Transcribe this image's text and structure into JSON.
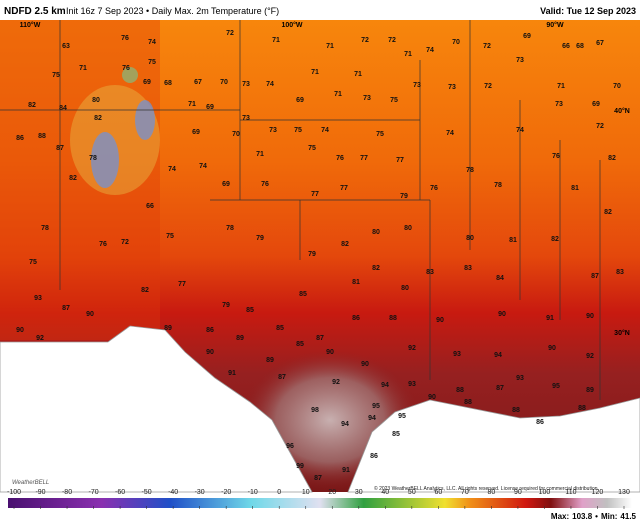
{
  "header": {
    "model": "NDFD 2.5 km",
    "description": "Init 16z 7 Sep 2023 • Daily Max. 2m Temperature (°F)",
    "valid": "Valid: Tue 12 Sep 2023"
  },
  "map": {
    "grid_labels": [
      "110°W",
      "100°W",
      "90°W",
      "40°N",
      "30°N"
    ],
    "temperatures": [
      63,
      76,
      74,
      72,
      71,
      71,
      72,
      72,
      71,
      74,
      70,
      72,
      69,
      66,
      68,
      67,
      70,
      75,
      71,
      76,
      75,
      69,
      68,
      67,
      70,
      73,
      74,
      71,
      71,
      73,
      72,
      73,
      71,
      82,
      84,
      80,
      82,
      71,
      69,
      73,
      69,
      71,
      73,
      75,
      73,
      73,
      69,
      88,
      86,
      87,
      78,
      69,
      70,
      73,
      75,
      74,
      75,
      74,
      74,
      72,
      82,
      74,
      74,
      71,
      75,
      76,
      77,
      77,
      78,
      76,
      82,
      66,
      69,
      76,
      77,
      77,
      79,
      76,
      78,
      81,
      82,
      75,
      78,
      76,
      72,
      75,
      78,
      79,
      79,
      82,
      80,
      80,
      80,
      81,
      82,
      93,
      87,
      90,
      82,
      77,
      79,
      85,
      85,
      81,
      82,
      80,
      83,
      83,
      84,
      87,
      83,
      90,
      92,
      89,
      86,
      89,
      85,
      87,
      86,
      88,
      90,
      90,
      91,
      90,
      90,
      89,
      85,
      90,
      90,
      92,
      93,
      94,
      90,
      92,
      91,
      87,
      92,
      94,
      93,
      88,
      87,
      93,
      95,
      89,
      98,
      94,
      95,
      95,
      90,
      88,
      88,
      86,
      88,
      96,
      94,
      85,
      99,
      87,
      91,
      86
    ],
    "logo": "WeatherBELL",
    "copyright": "© 2023 WeatherBELL Analytics, LLC. All rights reserved. License required for commercial distribution."
  },
  "colorbar": {
    "ticks": [
      -100,
      -90,
      -80,
      -70,
      -60,
      -50,
      -40,
      -30,
      -20,
      -10,
      0,
      10,
      20,
      30,
      40,
      50,
      60,
      70,
      80,
      90,
      100,
      110,
      120,
      130
    ]
  },
  "stats": {
    "max_label": "Max:",
    "max": 103.8,
    "separator": "•",
    "min_label": "Min:",
    "min": 41.5
  }
}
